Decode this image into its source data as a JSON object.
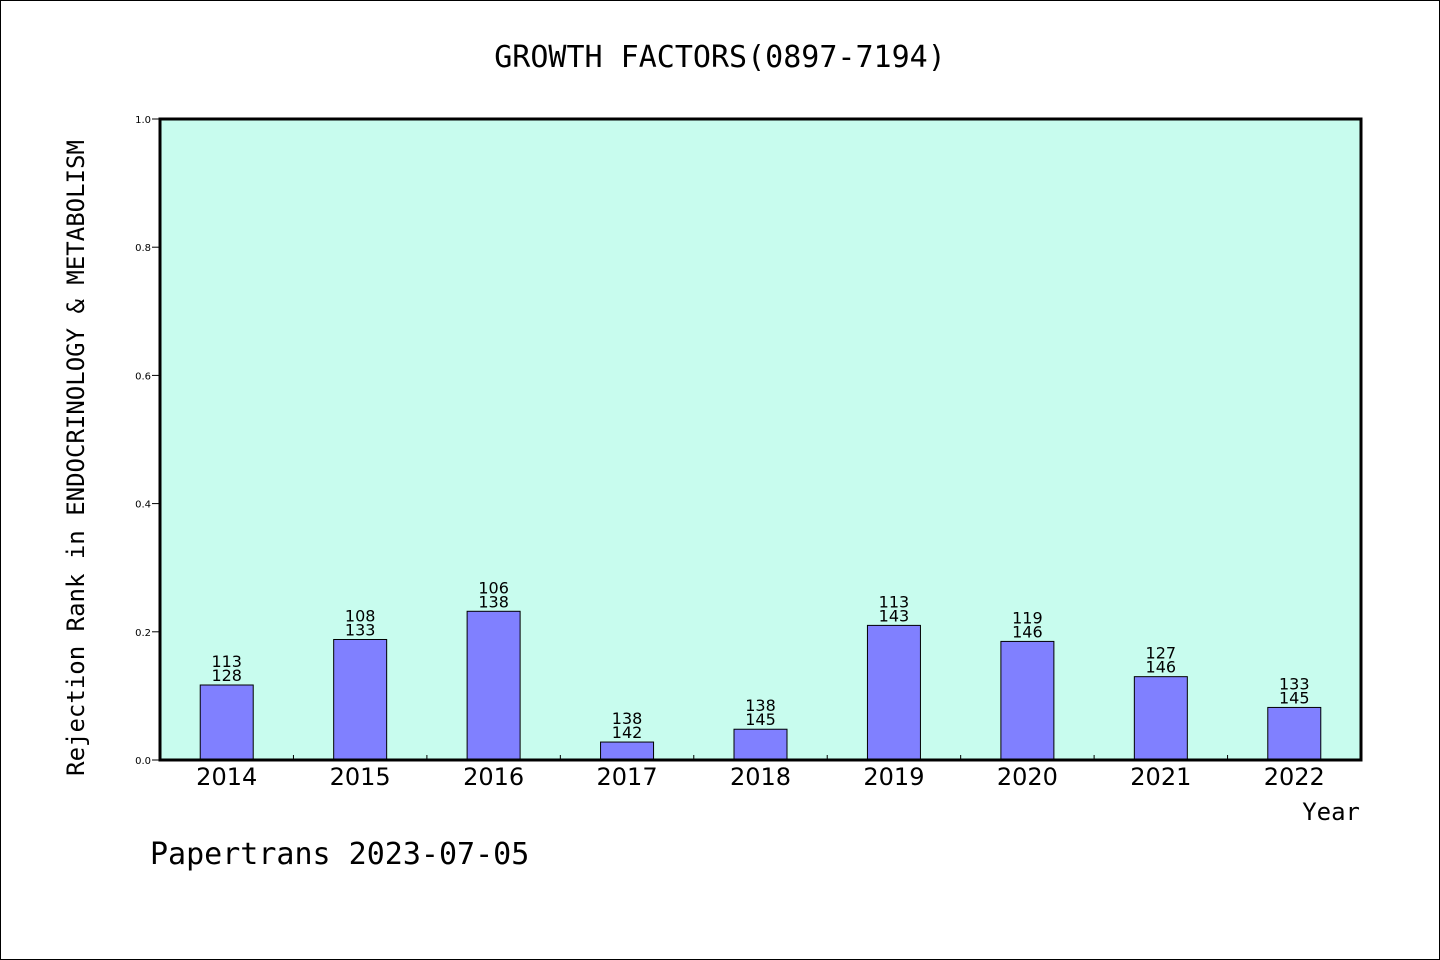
{
  "chart_data": {
    "type": "bar",
    "title": "GROWTH FACTORS(0897-7194)",
    "xlabel": "Year",
    "ylabel": "Rejection Rank in ENDOCRINOLOGY & METABOLISM",
    "categories": [
      "2014",
      "2015",
      "2016",
      "2017",
      "2018",
      "2019",
      "2020",
      "2021",
      "2022"
    ],
    "values": [
      0.117,
      0.188,
      0.232,
      0.028,
      0.048,
      0.21,
      0.185,
      0.13,
      0.082
    ],
    "bar_labels_top": [
      "113",
      "108",
      "106",
      "138",
      "138",
      "113",
      "119",
      "127",
      "133"
    ],
    "bar_labels_bottom": [
      "128",
      "133",
      "138",
      "142",
      "145",
      "143",
      "146",
      "146",
      "145"
    ],
    "ylim": [
      0.0,
      1.0
    ],
    "yticks": [
      "0.0",
      "0.2",
      "0.4",
      "0.6",
      "0.8",
      "1.0"
    ],
    "grid": false,
    "colors": {
      "plot_background": "#c8fcee",
      "bar_fill": "#8080ff",
      "bar_stroke": "#000000"
    }
  },
  "footer": "Papertrans 2023-07-05"
}
